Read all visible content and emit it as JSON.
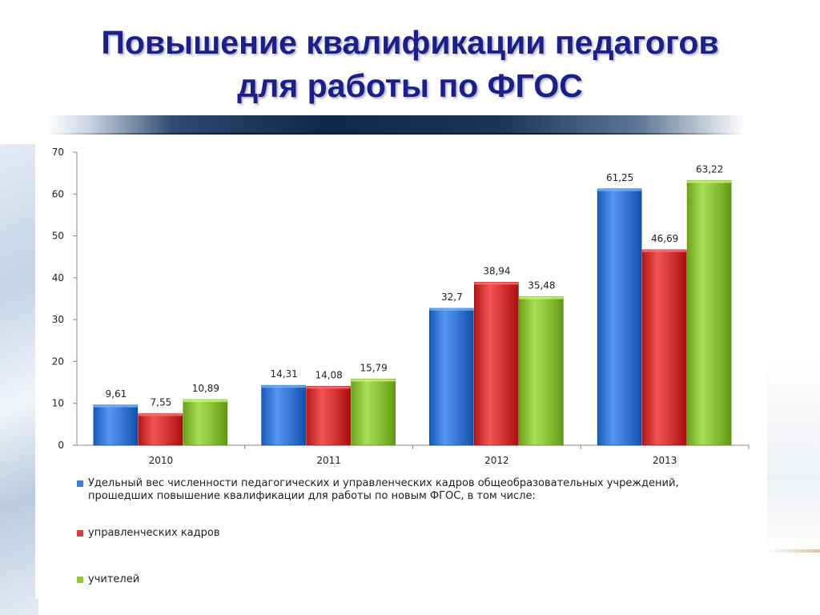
{
  "slide": {
    "title_line1": "Повышение квалификации педагогов",
    "title_line2": "для работы по ФГОС"
  },
  "chart_data": {
    "type": "bar",
    "categories": [
      "2010",
      "2011",
      "2012",
      "2013"
    ],
    "series": [
      {
        "name": "Удельный вес численности педагогических и управленческих кадров общеобразовательных учреждений, прошедших повышение квалификации для работы по новым ФГОС, в том числе:",
        "color": "#3b7dd8",
        "values": [
          9.61,
          14.31,
          32.7,
          61.25
        ],
        "labels": [
          "9,61",
          "14,31",
          "32,7",
          "61,25"
        ]
      },
      {
        "name": "управленческих кадров",
        "color": "#d93a3a",
        "values": [
          7.55,
          14.08,
          38.94,
          46.69
        ],
        "labels": [
          "7,55",
          "14,08",
          "38,94",
          "46,69"
        ]
      },
      {
        "name": "учителей",
        "color": "#8fc63d",
        "values": [
          10.89,
          15.79,
          35.48,
          63.22
        ],
        "labels": [
          "10,89",
          "15,79",
          "35,48",
          "63,22"
        ]
      }
    ],
    "ylim": [
      0,
      70
    ],
    "yticks": [
      "0",
      "10",
      "20",
      "30",
      "40",
      "50",
      "60",
      "70"
    ],
    "grid": false,
    "legend_position": "bottom"
  }
}
